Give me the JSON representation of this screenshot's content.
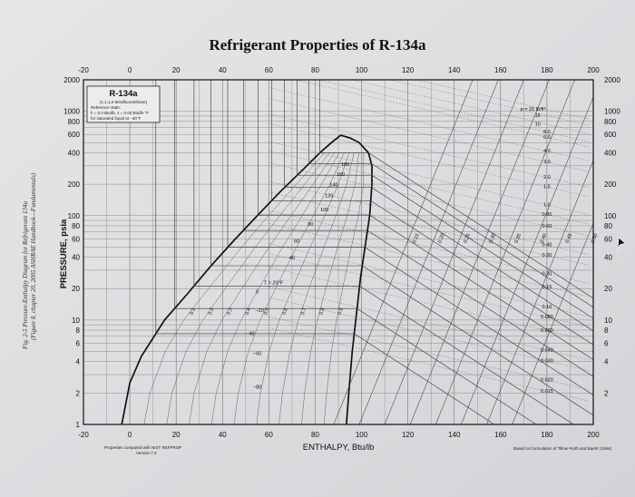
{
  "chart_data": {
    "type": "line",
    "title": "Refrigerant Properties of R-134a",
    "xlabel": "ENTHALPY, Btu/lb",
    "ylabel": "PRESSURE, psia",
    "xlim": [
      -20,
      200
    ],
    "ylim": [
      1,
      2000
    ],
    "y_scale": "log",
    "grid": true,
    "x_ticks": [
      "-20",
      "0",
      "20",
      "40",
      "60",
      "80",
      "100",
      "120",
      "140",
      "160",
      "180",
      "200"
    ],
    "x_ticks_top": [
      "-20",
      "0",
      "20",
      "40",
      "60",
      "80",
      "100",
      "120",
      "140",
      "160",
      "180",
      "200"
    ],
    "y_ticks_left": [
      "2000",
      "1000",
      "800",
      "600",
      "400",
      "200",
      "100",
      "80",
      "60",
      "40",
      "20",
      "10",
      "8",
      "6",
      "4",
      "2",
      "1"
    ],
    "y_ticks_right": [
      "2000",
      "1000",
      "800",
      "600",
      "400",
      "200",
      "100",
      "80",
      "60",
      "40",
      "20",
      "10",
      "8",
      "6",
      "4",
      "2"
    ],
    "legend_box": {
      "name": "R-134a",
      "lines": [
        "(1,1,1,2-tetrafluoroethane)",
        "Reference state:",
        "h = 0.0 Btu/lb,   s = 0.00 Btu/lb·°F",
        "for saturated liquid at −40°F"
      ]
    },
    "saturation_liquid": {
      "name": "saturated liquid",
      "points": [
        [
          -3.5,
          1
        ],
        [
          0,
          2.5
        ],
        [
          5,
          4.5
        ],
        [
          15,
          10
        ],
        [
          25,
          18
        ],
        [
          35,
          33
        ],
        [
          45,
          58
        ],
        [
          55,
          100
        ],
        [
          65,
          170
        ],
        [
          75,
          280
        ],
        [
          82,
          400
        ],
        [
          87,
          500
        ],
        [
          91,
          589
        ]
      ]
    },
    "saturation_vapor": {
      "name": "saturated vapor",
      "points": [
        [
          91,
          589
        ],
        [
          95,
          555
        ],
        [
          99,
          500
        ],
        [
          103,
          400
        ],
        [
          104.5,
          300
        ],
        [
          104.5,
          200
        ],
        [
          103.5,
          100
        ],
        [
          101.5,
          50
        ],
        [
          99.5,
          25
        ],
        [
          97.5,
          10
        ],
        [
          96,
          5
        ],
        [
          94.5,
          2
        ],
        [
          93.5,
          1
        ]
      ]
    },
    "isotherm_labels": [
      "T = 20°F",
      "40",
      "60",
      "80",
      "100",
      "120",
      "140",
      "160",
      "180"
    ],
    "inner_isotherm_labels": [
      "0",
      "−20",
      "−40",
      "−60",
      "−80"
    ],
    "quality_labels": [
      "0.1",
      "0.2",
      "0.3",
      "0.4",
      "0.5",
      "0.6",
      "0.7",
      "0.8",
      "0.9"
    ],
    "isentrope_labels": [
      "0.15",
      "0.20",
      "0.25",
      "0.30",
      "0.35",
      "0.40",
      "0.45",
      "0.50"
    ],
    "density_labels": [
      "p = 20 lb/ft³",
      "15",
      "10",
      "8.0",
      "6.0",
      "4.0",
      "3.0",
      "2.0",
      "1.5",
      "1.0",
      "0.80",
      "0.60",
      "0.40",
      "0.30",
      "0.20",
      "0.15",
      "0.10",
      "0.080",
      "0.060",
      "0.040",
      "0.030",
      "0.020",
      "0.015"
    ],
    "density_values": [
      20,
      15,
      10,
      8.0,
      6.0,
      4.0,
      3.0,
      2.0,
      1.5,
      1.0,
      0.8,
      0.6,
      0.4,
      0.3,
      0.2,
      0.15,
      0.1,
      0.08,
      0.06,
      0.04,
      0.03,
      0.02,
      0.015
    ],
    "bottom_left_note": [
      "Properties computed with NIST REFPROP",
      "Version 7.0"
    ],
    "bottom_right_note": "Based on formulation of Tillner-Roth and Baehr (1994)",
    "side_caption": [
      "Fig. 2-5 Pressure-Enthalpy Diagram for Refrigerant 134a",
      "(Figure 8, chapter 20, 2005 ASHRAE Handbook—Fundamentals)"
    ]
  }
}
